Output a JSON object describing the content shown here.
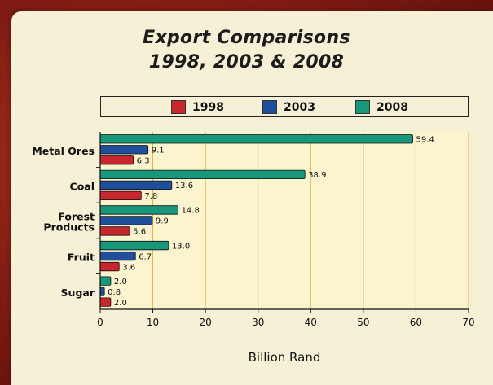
{
  "chart_data": {
    "type": "bar",
    "orientation": "horizontal",
    "title_line1": "Export Comparisons",
    "title_line2": "1998, 2003 & 2008",
    "xlabel": "Billion Rand",
    "xlim": [
      0,
      70
    ],
    "xticks": [
      0,
      10,
      20,
      30,
      40,
      50,
      60,
      70
    ],
    "categories": [
      "Metal Ores",
      "Coal",
      "Forest Products",
      "Fruit",
      "Sugar"
    ],
    "category_lines": [
      [
        "Metal Ores"
      ],
      [
        "Coal"
      ],
      [
        "Forest",
        "Products"
      ],
      [
        "Fruit"
      ],
      [
        "Sugar"
      ]
    ],
    "series": [
      {
        "name": "1998",
        "color": "#c8282d",
        "values": [
          6.3,
          7.8,
          5.6,
          3.6,
          2.0
        ],
        "labels": [
          "6.3",
          "7.8",
          "5.6",
          "3.6",
          "2.0"
        ]
      },
      {
        "name": "2003",
        "color": "#1f4e9a",
        "values": [
          9.1,
          13.6,
          9.9,
          6.7,
          0.8
        ],
        "labels": [
          "9.1",
          "13.6",
          "9.9",
          "6.7",
          "0.8"
        ]
      },
      {
        "name": "2008",
        "color": "#17987a",
        "values": [
          59.4,
          38.9,
          14.8,
          13.0,
          2.0
        ],
        "labels": [
          "59.4",
          "38.9",
          "14.8",
          "13.0",
          "2.0"
        ]
      }
    ],
    "grid": true,
    "legend_position": "top"
  }
}
